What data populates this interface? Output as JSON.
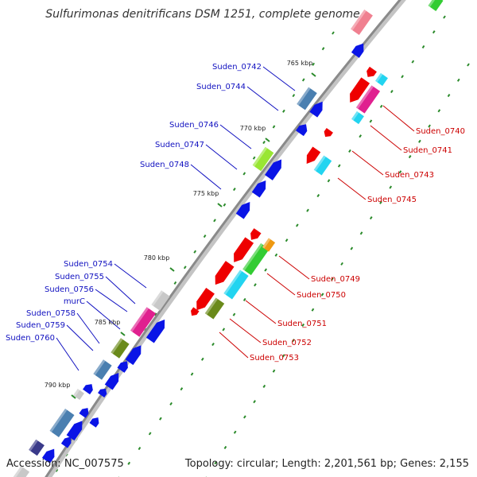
{
  "title": "Sulfurimonas denitrificans DSM 1251, complete genome",
  "footer": {
    "accession": "Accession: NC_007575",
    "topology": "Topology: circular; Length: 2,201,561 bp; Genes: 2,155"
  },
  "colors": {
    "forward_label": "#1010c0",
    "reverse_label": "#cc0000",
    "backbone": "#8a8a8a",
    "tick": "#2a8a2a",
    "blue": "#0a14e6",
    "red": "#ee0000",
    "steel": "#4a7fb0",
    "cyan": "#22d4f0",
    "magenta": "#e0208f",
    "olive": "#6a8a1a",
    "lime": "#99e633",
    "green": "#33cc33",
    "gray": "#c8c8c8",
    "orange": "#ee9911",
    "pink": "#f08090",
    "navy": "#3a3a8a"
  },
  "kbp_markers": [
    "765 kbp",
    "770 kbp",
    "775 kbp",
    "780 kbp",
    "785 kbp",
    "790 kbp"
  ],
  "forward_genes": [
    "Suden_0742",
    "Suden_0744",
    "Suden_0746",
    "Suden_0747",
    "Suden_0748",
    "Suden_0754",
    "Suden_0755",
    "Suden_0756",
    "murC",
    "Suden_0758",
    "Suden_0759",
    "Suden_0760"
  ],
  "reverse_genes": [
    "Suden_0740",
    "Suden_0741",
    "Suden_0743",
    "Suden_0745",
    "Suden_0749",
    "Suden_0750",
    "Suden_0751",
    "Suden_0752",
    "Suden_0753"
  ]
}
